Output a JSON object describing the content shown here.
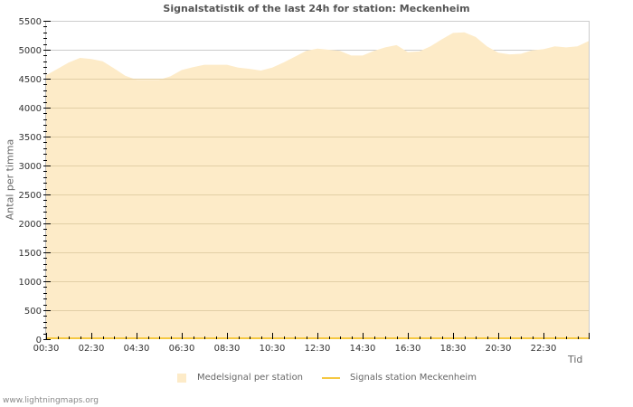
{
  "title": "Signalstatistik of the last 24h for station: Meckenheim",
  "footer": "www.lightningmaps.org",
  "chart_data": {
    "type": "area",
    "title": "Signalstatistik of the last 24h for station: Meckenheim",
    "xlabel": "Tid",
    "ylabel": "Antal per timma",
    "ylim": [
      0,
      5500
    ],
    "yticks": [
      0,
      500,
      1000,
      1500,
      2000,
      2500,
      3000,
      3500,
      4000,
      4500,
      5000,
      5500
    ],
    "xticks": [
      "00:30",
      "02:30",
      "04:30",
      "06:30",
      "08:30",
      "10:30",
      "12:30",
      "14:30",
      "16:30",
      "18:30",
      "20:30",
      "22:30"
    ],
    "grid": true,
    "legend_position": "bottom",
    "x": [
      "00:30",
      "01:30",
      "02:00",
      "02:30",
      "03:00",
      "03:30",
      "04:00",
      "04:30",
      "05:30",
      "06:00",
      "06:30",
      "07:00",
      "07:30",
      "08:30",
      "09:00",
      "09:30",
      "10:00",
      "10:30",
      "11:00",
      "11:30",
      "12:00",
      "12:30",
      "13:00",
      "13:30",
      "14:00",
      "14:30",
      "15:00",
      "15:30",
      "16:00",
      "16:30",
      "17:00",
      "17:30",
      "18:00",
      "18:30",
      "19:00",
      "19:30",
      "20:00",
      "20:30",
      "21:00",
      "21:30",
      "22:00",
      "22:30",
      "23:00",
      "23:30",
      "00:00",
      "00:30"
    ],
    "series": [
      {
        "name": "Medelsignal per station",
        "type": "area",
        "color": "#fdebc8",
        "values": [
          4560,
          4780,
          4860,
          4840,
          4800,
          4680,
          4550,
          4480,
          4480,
          4540,
          4650,
          4700,
          4740,
          4740,
          4690,
          4670,
          4640,
          4690,
          4780,
          4880,
          4980,
          5020,
          5000,
          4980,
          4900,
          4900,
          4980,
          5040,
          5080,
          4960,
          4970,
          5060,
          5180,
          5290,
          5300,
          5220,
          5060,
          4950,
          4920,
          4930,
          4990,
          5010,
          5060,
          5040,
          5060,
          5150
        ]
      },
      {
        "name": "Signals station Meckenheim",
        "type": "line",
        "color": "#f5c842",
        "values": [
          0,
          0,
          0,
          0,
          0,
          0,
          0,
          0,
          0,
          0,
          0,
          0,
          0,
          0,
          0,
          0,
          0,
          0,
          0,
          0,
          0,
          0,
          0,
          0,
          0,
          0,
          0,
          0,
          0,
          0,
          0,
          0,
          0,
          0,
          0,
          0,
          0,
          0,
          0,
          0,
          0,
          0,
          0,
          0,
          0,
          0
        ]
      }
    ]
  },
  "legend": {
    "items": [
      {
        "label": "Medelsignal per station"
      },
      {
        "label": "Signals station Meckenheim"
      }
    ]
  }
}
